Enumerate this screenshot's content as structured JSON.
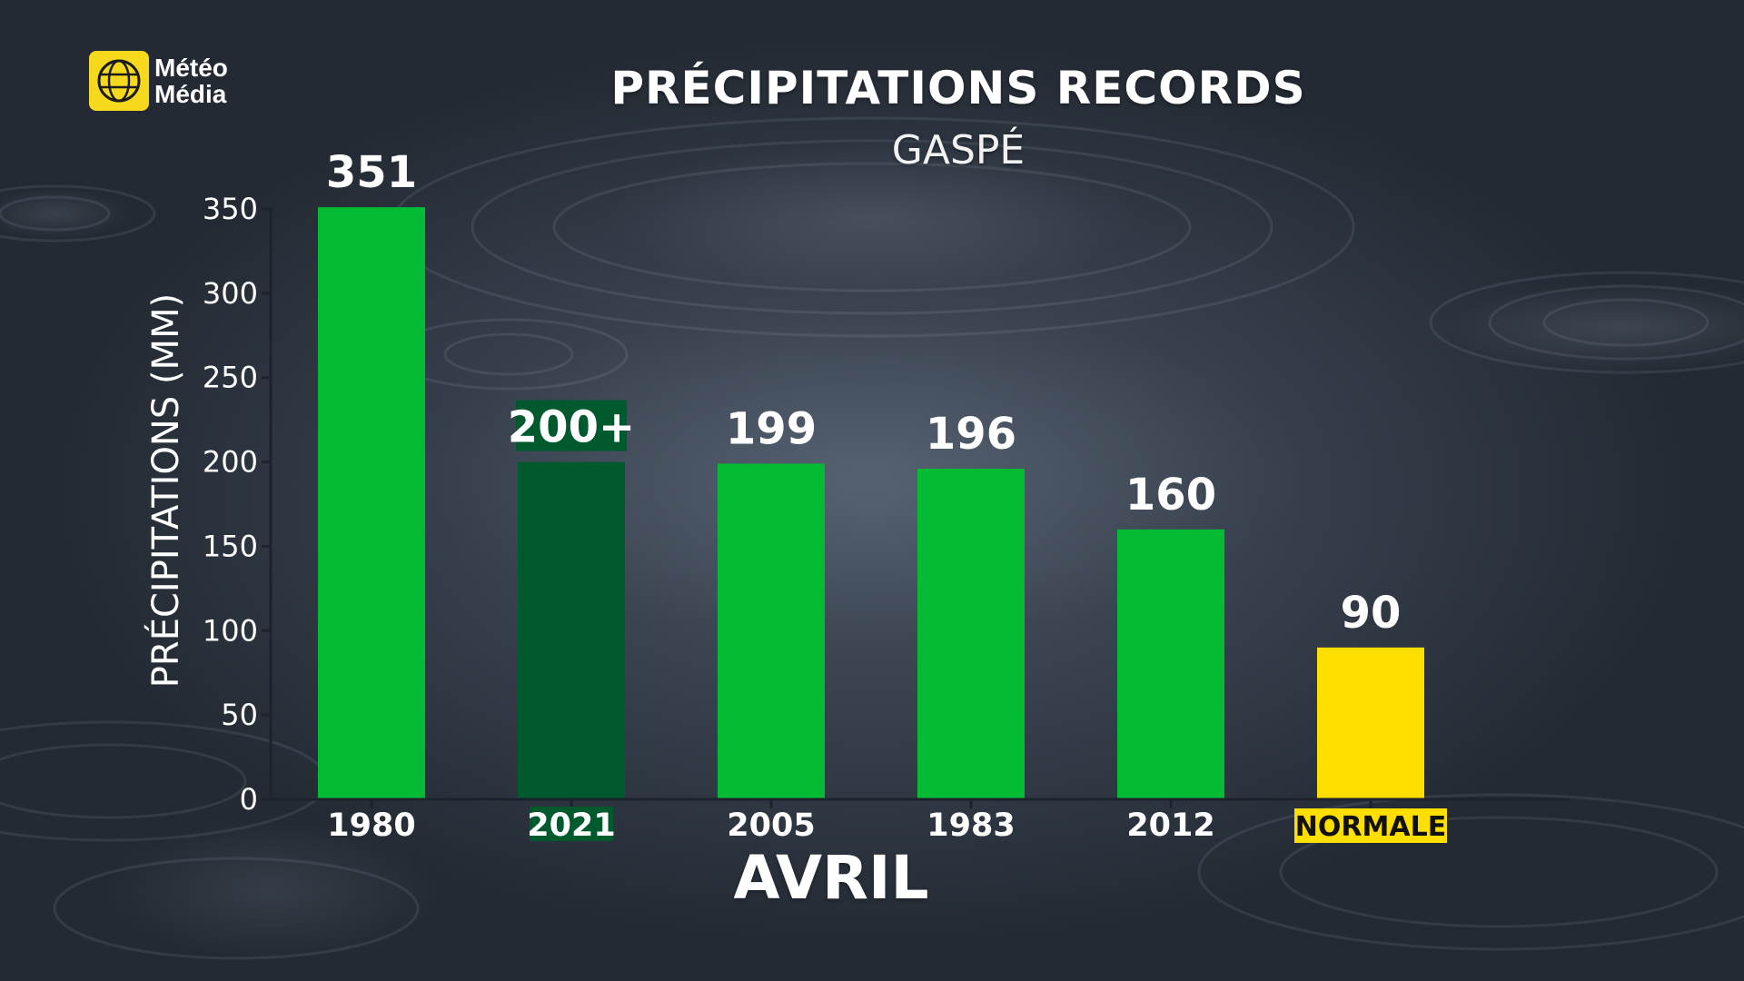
{
  "brand": {
    "name_line1": "Météo",
    "name_line2": "Média",
    "logo_color": "#f6d81c"
  },
  "chart_data": {
    "type": "bar",
    "title": "PRÉCIPITATIONS RECORDS",
    "subtitle": "GASPÉ",
    "xlabel": "AVRIL",
    "ylabel": "PRÉCIPITATIONS (MM)",
    "ylim": [
      0,
      350
    ],
    "yticks": [
      "0",
      "50",
      "100",
      "150",
      "200",
      "250",
      "300",
      "350"
    ],
    "categories": [
      "1980",
      "2021",
      "2005",
      "1983",
      "2012",
      "NORMALE"
    ],
    "values": [
      351,
      200,
      199,
      196,
      160,
      90
    ],
    "value_labels": [
      "351",
      "200+",
      "199",
      "196",
      "160",
      "90"
    ],
    "bar_colors": [
      "#05bb33",
      "#005a2e",
      "#05bb33",
      "#05bb33",
      "#05bb33",
      "#ffdf00"
    ],
    "highlight_category": "2021",
    "grid": false,
    "legend": "none"
  }
}
